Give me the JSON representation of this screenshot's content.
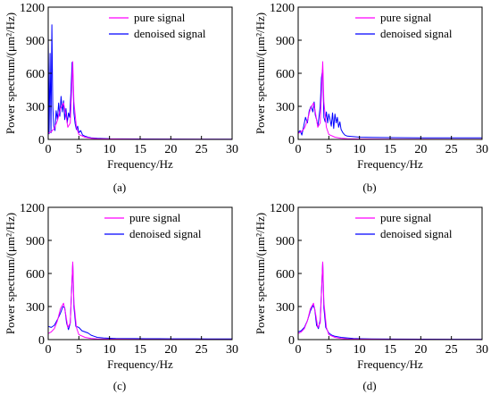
{
  "colors": {
    "pure": "#ff00ff",
    "denoised": "#0000ff",
    "axis": "#000000",
    "background": "#ffffff"
  },
  "legend": {
    "pure": "pure signal",
    "denoised": "denoised signal"
  },
  "xlabel": "Frequency/Hz",
  "xticks": [
    "0",
    "5",
    "10",
    "15",
    "20",
    "25",
    "30"
  ],
  "yticks": [
    "0",
    "300",
    "600",
    "900",
    "1200"
  ],
  "chart_data": [
    {
      "type": "line",
      "panel_label": "(a)",
      "ylabel": "Power spectrum/(μm²/Hz)",
      "xlim": [
        0,
        30
      ],
      "ylim": [
        0,
        1200
      ],
      "legend_position": "top-right",
      "grid": false,
      "series": [
        {
          "name": "pure signal",
          "x": [
            0,
            0.5,
            1,
            1.5,
            2,
            2.5,
            2.8,
            3.2,
            3.6,
            3.8,
            4,
            4.2,
            4.6,
            5,
            6,
            7,
            8,
            10,
            15,
            30
          ],
          "y": [
            55,
            70,
            100,
            170,
            280,
            330,
            250,
            110,
            150,
            420,
            705,
            340,
            110,
            45,
            20,
            10,
            6,
            4,
            2,
            1
          ]
        },
        {
          "name": "denoised signal",
          "x": [
            0,
            0.15,
            0.3,
            0.45,
            0.6,
            0.75,
            0.9,
            1.1,
            1.3,
            1.5,
            1.7,
            1.9,
            2.1,
            2.3,
            2.5,
            2.7,
            2.9,
            3.1,
            3.3,
            3.5,
            3.7,
            3.9,
            4.05,
            4.2,
            4.4,
            4.6,
            4.8,
            5,
            5.3,
            5.6,
            6,
            6.5,
            7,
            8,
            9,
            10,
            12,
            15,
            20,
            25,
            30
          ],
          "y": [
            950,
            50,
            780,
            60,
            1040,
            300,
            120,
            80,
            260,
            180,
            330,
            210,
            390,
            250,
            350,
            180,
            280,
            150,
            240,
            200,
            420,
            700,
            560,
            240,
            140,
            90,
            120,
            60,
            80,
            40,
            30,
            20,
            15,
            10,
            8,
            6,
            5,
            4,
            3,
            2,
            2
          ]
        }
      ]
    },
    {
      "type": "line",
      "panel_label": "(b)",
      "ylabel": "Power spectrum/(μm²/Hz)",
      "xlim": [
        0,
        30
      ],
      "ylim": [
        0,
        1200
      ],
      "legend_position": "top-right",
      "grid": false,
      "series": [
        {
          "name": "pure signal",
          "x": [
            0,
            0.5,
            1,
            1.5,
            2,
            2.5,
            2.8,
            3.2,
            3.6,
            3.8,
            4,
            4.2,
            4.6,
            5,
            6,
            7,
            8,
            10,
            15,
            30
          ],
          "y": [
            55,
            70,
            100,
            170,
            280,
            330,
            250,
            110,
            150,
            420,
            705,
            340,
            110,
            45,
            20,
            10,
            6,
            4,
            2,
            1
          ]
        },
        {
          "name": "denoised signal",
          "x": [
            0,
            0.3,
            0.6,
            0.9,
            1.2,
            1.5,
            1.8,
            2.1,
            2.4,
            2.6,
            2.8,
            3,
            3.2,
            3.4,
            3.6,
            3.8,
            4,
            4.2,
            4.4,
            4.6,
            4.8,
            5,
            5.2,
            5.4,
            5.6,
            5.8,
            6,
            6.2,
            6.4,
            6.6,
            6.8,
            7,
            7.3,
            7.6,
            8,
            9,
            10,
            12,
            15,
            20,
            25,
            30
          ],
          "y": [
            60,
            80,
            40,
            120,
            200,
            150,
            260,
            300,
            250,
            340,
            220,
            180,
            120,
            200,
            300,
            560,
            640,
            200,
            160,
            250,
            150,
            230,
            180,
            120,
            240,
            100,
            230,
            150,
            200,
            110,
            160,
            90,
            60,
            40,
            30,
            25,
            20,
            18,
            16,
            15,
            14,
            14
          ]
        }
      ]
    },
    {
      "type": "line",
      "panel_label": "(c)",
      "ylabel": "Power spectrum/(μm²/Hz)",
      "xlim": [
        0,
        30
      ],
      "ylim": [
        0,
        1200
      ],
      "legend_position": "top-right",
      "grid": false,
      "series": [
        {
          "name": "pure signal",
          "x": [
            0,
            0.5,
            1,
            1.5,
            2,
            2.5,
            2.8,
            3.2,
            3.6,
            3.8,
            4,
            4.2,
            4.6,
            5,
            6,
            7,
            8,
            10,
            15,
            30
          ],
          "y": [
            55,
            70,
            100,
            170,
            280,
            330,
            250,
            110,
            150,
            420,
            705,
            340,
            110,
            45,
            20,
            10,
            6,
            4,
            2,
            1
          ]
        },
        {
          "name": "denoised signal",
          "x": [
            0,
            0.5,
            1,
            1.5,
            2,
            2.4,
            2.7,
            3,
            3.3,
            3.6,
            3.8,
            4,
            4.2,
            4.5,
            5,
            5.5,
            6,
            6.5,
            7,
            7.5,
            8,
            9,
            10,
            11,
            12,
            14,
            16,
            18,
            20,
            22,
            24,
            26,
            28,
            30
          ],
          "y": [
            120,
            110,
            130,
            180,
            240,
            300,
            290,
            150,
            90,
            150,
            430,
            690,
            300,
            120,
            110,
            80,
            70,
            60,
            40,
            30,
            20,
            15,
            12,
            10,
            9,
            9,
            8,
            8,
            7,
            7,
            7,
            6,
            6,
            6
          ]
        }
      ]
    },
    {
      "type": "line",
      "panel_label": "(d)",
      "ylabel": "Power spectrum/(μm²/Hz)",
      "xlim": [
        0,
        30
      ],
      "ylim": [
        0,
        1200
      ],
      "legend_position": "top-right",
      "grid": false,
      "series": [
        {
          "name": "pure signal",
          "x": [
            0,
            0.5,
            1,
            1.5,
            2,
            2.5,
            2.8,
            3.2,
            3.6,
            3.8,
            4,
            4.2,
            4.6,
            5,
            6,
            7,
            8,
            10,
            15,
            30
          ],
          "y": [
            55,
            70,
            100,
            170,
            280,
            330,
            250,
            110,
            150,
            420,
            705,
            340,
            110,
            45,
            20,
            10,
            6,
            4,
            2,
            1
          ]
        },
        {
          "name": "denoised signal",
          "x": [
            0,
            0.5,
            1,
            1.5,
            2,
            2.4,
            2.7,
            3,
            3.3,
            3.6,
            3.8,
            4,
            4.2,
            4.5,
            5,
            5.5,
            6,
            7,
            8,
            9,
            10,
            12,
            15,
            20,
            25,
            30
          ],
          "y": [
            70,
            80,
            110,
            170,
            260,
            310,
            280,
            130,
            100,
            180,
            430,
            700,
            290,
            110,
            60,
            40,
            30,
            20,
            15,
            10,
            8,
            6,
            5,
            4,
            3,
            3
          ]
        }
      ]
    }
  ]
}
